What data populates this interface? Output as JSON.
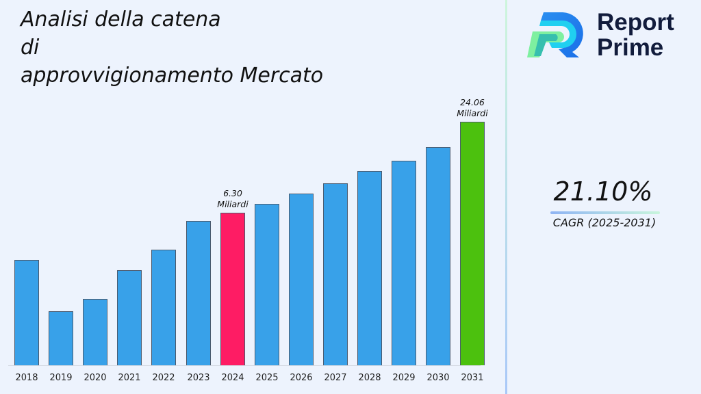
{
  "title": {
    "lines": [
      "Analisi della catena",
      "di",
      "approvvigionamento Mercato"
    ]
  },
  "logo": {
    "icon": "report-prime-r-logo-icon",
    "line1": "Report",
    "line2": "Prime"
  },
  "cagr": {
    "value": "21.10%",
    "label": "CAGR (2025-2031)"
  },
  "colors": {
    "bar_default": "#38a1e9",
    "bar_highlight_2024": "#fe1c64",
    "bar_highlight_2031": "#4cc10e",
    "background": "#edf3fd",
    "logo_text": "#121c3c"
  },
  "chart_data": {
    "type": "bar",
    "title": "Analisi della catena di approvvigionamento Mercato",
    "xlabel": "",
    "ylabel": "",
    "unit": "Miliardi",
    "categories": [
      "2018",
      "2019",
      "2020",
      "2021",
      "2022",
      "2023",
      "2024",
      "2025",
      "2026",
      "2027",
      "2028",
      "2029",
      "2030",
      "2031"
    ],
    "values": [
      4.8,
      3.4,
      3.7,
      4.5,
      5.1,
      5.9,
      6.3,
      7.63,
      9.24,
      11.19,
      13.55,
      16.41,
      19.87,
      24.06
    ],
    "px": [
      154,
      79,
      97,
      139,
      169,
      211,
      223,
      236,
      251,
      266,
      284,
      299,
      319,
      356
    ],
    "highlight": {
      "2024": "#fe1c64",
      "2031": "#4cc10e"
    },
    "annotations": [
      {
        "category": "2024",
        "text": "6.30",
        "unit": "Miliardi"
      },
      {
        "category": "2031",
        "text": "24.06",
        "unit": "Miliardi"
      }
    ],
    "grid": false,
    "legend": null,
    "cagr": "21.10%",
    "cagr_period": "2025-2031"
  }
}
